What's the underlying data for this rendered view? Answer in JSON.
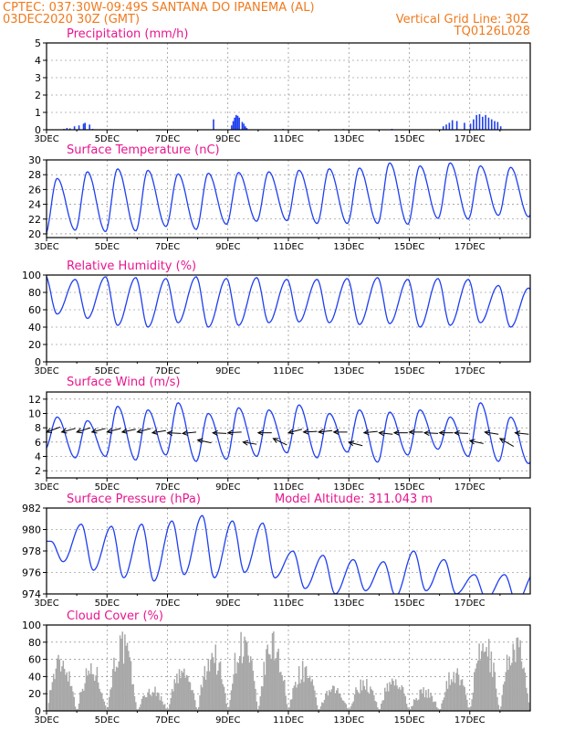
{
  "header": {
    "left1": "CPTEC:   037:30W-09:49S   SANTANA DO IPANEMA (AL)",
    "left2": "03DEC2020 30Z (GMT)",
    "right2": "Vertical Grid Line: 30Z",
    "right3": "TQ0126L028"
  },
  "colors": {
    "header": "#f07a1e",
    "title": "#e8168f",
    "line": "#1f3ff0",
    "cloud": "#a8a8a8"
  },
  "xaxis": {
    "labels": [
      "3DEC",
      "5DEC",
      "7DEC",
      "9DEC",
      "11DEC",
      "13DEC",
      "15DEC",
      "17DEC"
    ],
    "label_days": [
      0,
      2,
      4,
      6,
      8,
      10,
      12,
      14
    ],
    "start_label": "3DEC",
    "end_day": 16
  },
  "chart_data": [
    {
      "type": "bar",
      "title": "Precipitation (mm/h)",
      "ylim": [
        0,
        5
      ],
      "yticks": [
        0,
        1,
        2,
        3,
        4,
        5
      ],
      "grid": true,
      "bars": [
        [
          0.55,
          0.05
        ],
        [
          0.65,
          0.1
        ],
        [
          0.75,
          0.08
        ],
        [
          0.9,
          0.2
        ],
        [
          1.05,
          0.25
        ],
        [
          1.2,
          0.35
        ],
        [
          1.25,
          0.4
        ],
        [
          1.4,
          0.3
        ],
        [
          1.5,
          0.05
        ],
        [
          2.1,
          0.03
        ],
        [
          3.4,
          0.03
        ],
        [
          5.5,
          0.6
        ],
        [
          6.1,
          0.25
        ],
        [
          6.15,
          0.5
        ],
        [
          6.2,
          0.7
        ],
        [
          6.25,
          0.85
        ],
        [
          6.3,
          0.8
        ],
        [
          6.35,
          0.7
        ],
        [
          6.45,
          0.45
        ],
        [
          6.5,
          0.35
        ],
        [
          6.55,
          0.2
        ],
        [
          6.6,
          0.1
        ],
        [
          7.8,
          0.05
        ],
        [
          9.8,
          0.04
        ],
        [
          11.4,
          0.05
        ],
        [
          13.1,
          0.2
        ],
        [
          13.2,
          0.3
        ],
        [
          13.3,
          0.4
        ],
        [
          13.4,
          0.55
        ],
        [
          13.55,
          0.5
        ],
        [
          13.8,
          0.4
        ],
        [
          14.0,
          0.35
        ],
        [
          14.1,
          0.6
        ],
        [
          14.2,
          0.85
        ],
        [
          14.3,
          0.9
        ],
        [
          14.4,
          0.75
        ],
        [
          14.5,
          0.85
        ],
        [
          14.6,
          0.7
        ],
        [
          14.7,
          0.6
        ],
        [
          14.8,
          0.5
        ],
        [
          14.9,
          0.45
        ],
        [
          15.0,
          0.2
        ]
      ]
    },
    {
      "type": "line",
      "title": "Surface Temperature (nC)",
      "ylim": [
        19.5,
        30
      ],
      "yticks": [
        20,
        22,
        24,
        26,
        28,
        30
      ],
      "grid": true,
      "daily": {
        "max": [
          27.5,
          28.4,
          28.8,
          28.6,
          28.1,
          28.2,
          28.3,
          28.4,
          28.6,
          28.8,
          28.9,
          29.6,
          29.2,
          29.6,
          29.2,
          29.0,
          29.8
        ],
        "min": [
          19.8,
          20.5,
          20.3,
          20.4,
          21.0,
          20.6,
          21.3,
          21.7,
          21.8,
          21.4,
          21.4,
          21.4,
          21.3,
          22.1,
          22.0,
          22.5,
          22.3
        ]
      }
    },
    {
      "type": "line",
      "title": "Relative Humidity (%)",
      "ylim": [
        0,
        100
      ],
      "yticks": [
        0,
        20,
        40,
        60,
        80,
        100
      ],
      "grid": true,
      "daily": {
        "max": [
          100,
          95,
          98,
          97,
          96,
          98,
          96,
          97,
          95,
          95,
          96,
          97,
          95,
          96,
          95,
          88,
          85
        ],
        "min": [
          55,
          50,
          42,
          40,
          45,
          40,
          42,
          45,
          46,
          45,
          43,
          44,
          40,
          42,
          45,
          40,
          40
        ]
      }
    },
    {
      "type": "line",
      "title": "Surface Wind (m/s)",
      "ylim": [
        1,
        13
      ],
      "yticks": [
        2,
        4,
        6,
        8,
        10,
        12
      ],
      "grid": true,
      "daily": {
        "max": [
          9.5,
          9.0,
          11.0,
          10.5,
          11.5,
          10.0,
          10.8,
          10.5,
          11.2,
          10.0,
          10.5,
          10.2,
          10.5,
          9.5,
          11.5,
          9.5,
          8.5
        ],
        "min": [
          5.0,
          3.8,
          4.0,
          3.5,
          4.2,
          3.3,
          3.6,
          4.0,
          4.5,
          3.8,
          4.6,
          3.2,
          4.2,
          5.0,
          4.0,
          3.3,
          3.0
        ]
      },
      "vectors": [
        {
          "day": 0.0,
          "speed": 7.4,
          "dir": "E",
          "to_y": 8.1
        },
        {
          "day": 0.5,
          "speed": 7.4,
          "dir": "E",
          "to_y": 7.9
        },
        {
          "day": 1.0,
          "speed": 7.4,
          "dir": "E",
          "to_y": 8.0
        },
        {
          "day": 1.5,
          "speed": 7.4,
          "dir": "E",
          "to_y": 7.9
        },
        {
          "day": 2.0,
          "speed": 7.4,
          "dir": "E",
          "to_y": 7.9
        },
        {
          "day": 2.5,
          "speed": 7.4,
          "dir": "E",
          "to_y": 7.8
        },
        {
          "day": 3.0,
          "speed": 7.4,
          "dir": "E",
          "to_y": 7.9
        },
        {
          "day": 3.5,
          "speed": 7.3,
          "dir": "E",
          "to_y": 7.6
        },
        {
          "day": 4.0,
          "speed": 7.3,
          "dir": "E",
          "to_y": 7.2
        },
        {
          "day": 4.5,
          "speed": 7.2,
          "dir": "E",
          "to_y": 7.4
        },
        {
          "day": 5.0,
          "speed": 6.3,
          "dir": "NE",
          "to_y": 5.9
        },
        {
          "day": 5.5,
          "speed": 7.3,
          "dir": "E",
          "to_y": 7.2
        },
        {
          "day": 6.0,
          "speed": 7.3,
          "dir": "E",
          "to_y": 7.4
        },
        {
          "day": 6.5,
          "speed": 6.0,
          "dir": "NE",
          "to_y": 5.7
        },
        {
          "day": 7.0,
          "speed": 7.3,
          "dir": "E",
          "to_y": 7.3
        },
        {
          "day": 7.5,
          "speed": 6.5,
          "dir": "NE",
          "to_y": 5.6
        },
        {
          "day": 8.0,
          "speed": 7.3,
          "dir": "E",
          "to_y": 7.8
        },
        {
          "day": 8.5,
          "speed": 7.4,
          "dir": "E",
          "to_y": 7.5
        },
        {
          "day": 9.0,
          "speed": 7.4,
          "dir": "E",
          "to_y": 7.6
        },
        {
          "day": 9.5,
          "speed": 7.4,
          "dir": "E",
          "to_y": 7.4
        },
        {
          "day": 10.0,
          "speed": 6.0,
          "dir": "NE",
          "to_y": 5.5
        },
        {
          "day": 10.5,
          "speed": 7.3,
          "dir": "E",
          "to_y": 7.5
        },
        {
          "day": 11.0,
          "speed": 7.3,
          "dir": "E",
          "to_y": 7.1
        },
        {
          "day": 11.5,
          "speed": 7.3,
          "dir": "E",
          "to_y": 7.3
        },
        {
          "day": 12.0,
          "speed": 7.4,
          "dir": "E",
          "to_y": 7.4
        },
        {
          "day": 12.5,
          "speed": 7.3,
          "dir": "E",
          "to_y": 7.2
        },
        {
          "day": 13.0,
          "speed": 7.3,
          "dir": "E",
          "to_y": 7.3
        },
        {
          "day": 13.5,
          "speed": 7.3,
          "dir": "E",
          "to_y": 7.2
        },
        {
          "day": 14.0,
          "speed": 6.2,
          "dir": "NE",
          "to_y": 5.8
        },
        {
          "day": 14.5,
          "speed": 7.4,
          "dir": "E",
          "to_y": 7.1
        },
        {
          "day": 15.0,
          "speed": 6.5,
          "dir": "NE",
          "to_y": 5.4
        },
        {
          "day": 15.5,
          "speed": 7.3,
          "dir": "E",
          "to_y": 7.1
        }
      ]
    },
    {
      "type": "line",
      "title": "Surface Pressure (hPa)",
      "note": "Model Altitude: 311.043 m",
      "ylim": [
        974,
        982
      ],
      "yticks": [
        974,
        976,
        978,
        980,
        982
      ],
      "grid": true,
      "daily": {
        "max": [
          978.9,
          980.5,
          980.3,
          980.5,
          980.8,
          981.3,
          980.8,
          980.6,
          978.0,
          977.6,
          977.2,
          977.0,
          978.0,
          977.2,
          975.8,
          975.8,
          976.0
        ],
        "min": [
          977.0,
          976.2,
          975.5,
          975.2,
          975.8,
          975.5,
          976.0,
          975.5,
          974.5,
          974.0,
          974.3,
          973.8,
          974.3,
          974.0,
          973.5,
          973.2,
          973.0
        ]
      }
    },
    {
      "type": "bar",
      "title": "Cloud Cover (%)",
      "ylim": [
        0,
        100
      ],
      "yticks": [
        0,
        20,
        40,
        60,
        80,
        100
      ],
      "grid": true,
      "daily_peak": [
        72,
        60,
        95,
        30,
        55,
        82,
        98,
        96,
        60,
        30,
        40,
        45,
        28,
        55,
        92,
        97,
        70
      ]
    }
  ]
}
